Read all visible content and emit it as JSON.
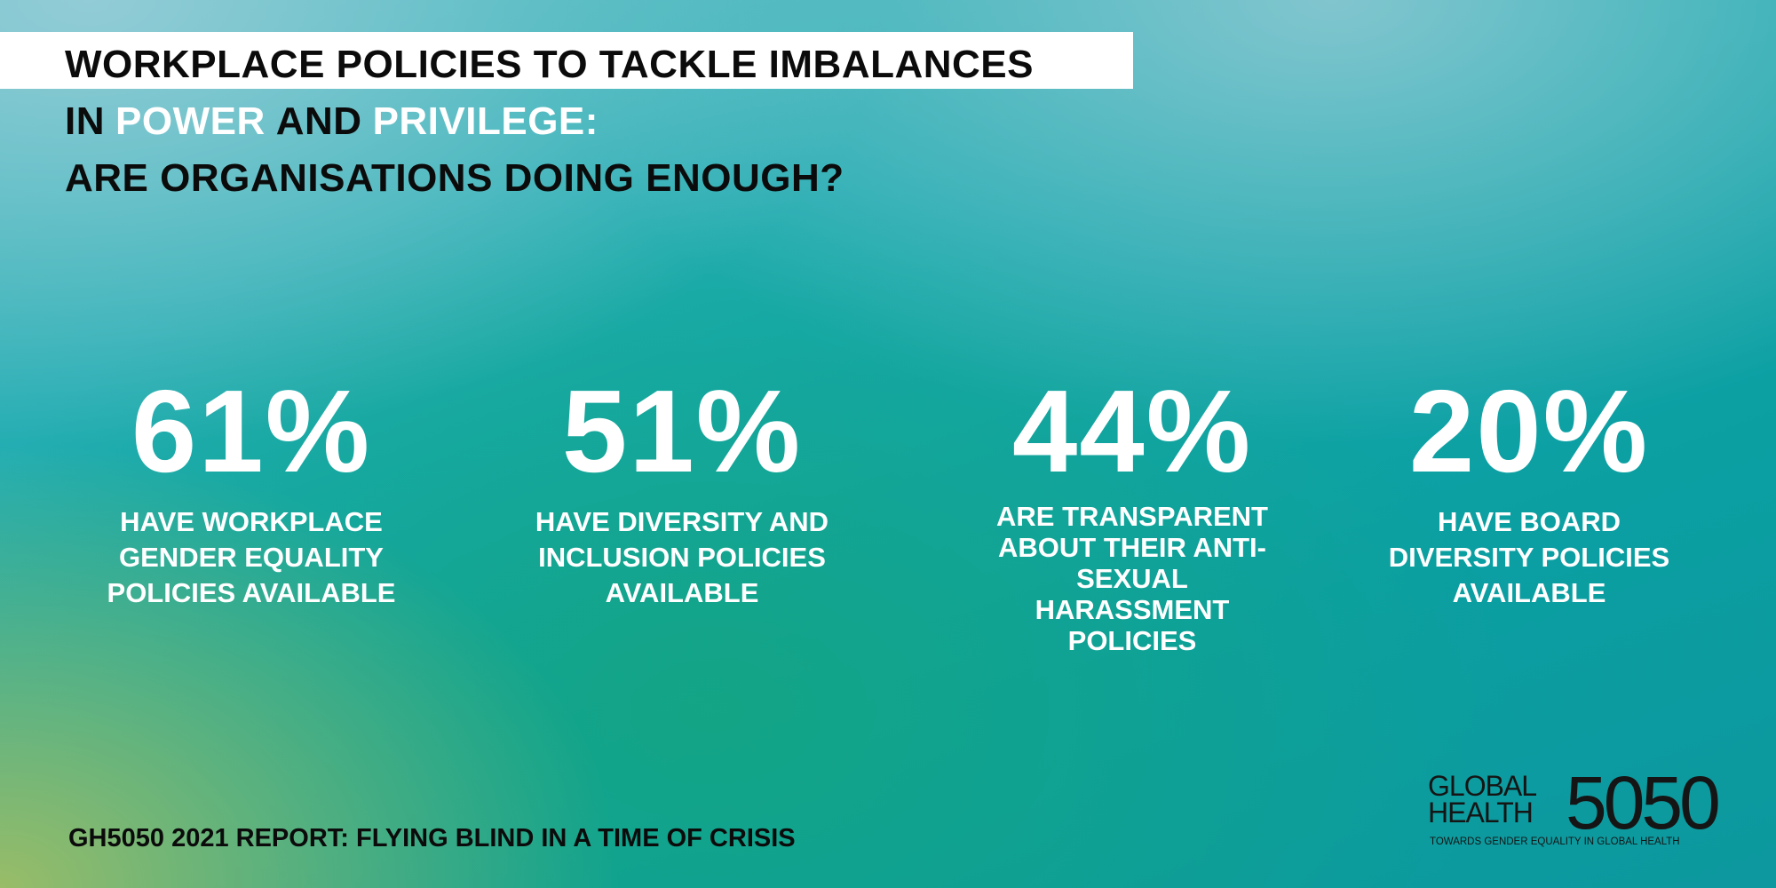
{
  "header": {
    "title_line_1": "WORKPLACE POLICIES TO TACKLE IMBALANCES",
    "title_line_2": [
      "IN",
      "POWER",
      "AND",
      "PRIVILEGE:"
    ],
    "title_line_3": "ARE ORGANISATIONS DOING ENOUGH?"
  },
  "stats": [
    {
      "figure": "61%",
      "text": "HAVE WORKPLACE GENDER EQUALITY POLICIES AVAILABLE"
    },
    {
      "figure": "51%",
      "text": "HAVE DIVERSITY AND INCLUSION POLICIES AVAILABLE"
    },
    {
      "figure": "44%",
      "text": "ARE TRANSPARENT ABOUT THEIR ANTI-SEXUAL HARASSMENT POLICIES"
    },
    {
      "figure": "20%",
      "text": "HAVE BOARD DIVERSITY POLICIES AVAILABLE"
    }
  ],
  "footer": "GH5050 2021 REPORT: FLYING BLIND IN A TIME OF CRISIS",
  "logo": {
    "line_1": "GLOBAL",
    "line_2": "HEALTH",
    "number": "5050",
    "tagline": "TOWARDS GENDER EQUALITY IN GLOBAL HEALTH"
  }
}
